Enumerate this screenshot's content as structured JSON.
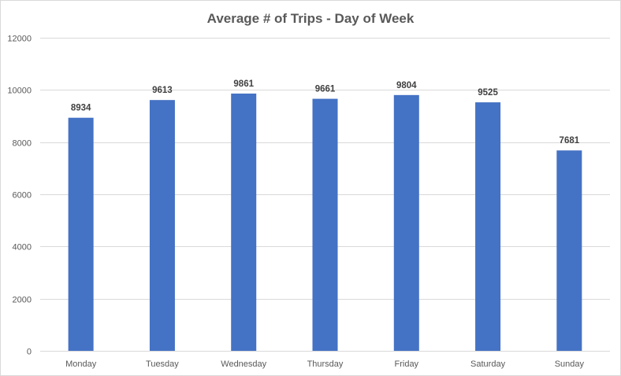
{
  "chart_data": {
    "type": "bar",
    "title": "Average # of Trips - Day of Week",
    "xlabel": "",
    "ylabel": "",
    "categories": [
      "Monday",
      "Tuesday",
      "Wednesday",
      "Thursday",
      "Friday",
      "Saturday",
      "Sunday"
    ],
    "values": [
      8934,
      9613,
      9861,
      9661,
      9804,
      9525,
      7681
    ],
    "data_labels": [
      "8934",
      "9613",
      "9861",
      "9661",
      "9804",
      "9525",
      "7681"
    ],
    "ylim": [
      0,
      12000
    ],
    "yticks": [
      0,
      2000,
      4000,
      6000,
      8000,
      10000,
      12000
    ],
    "ytick_labels": [
      "0",
      "2000",
      "4000",
      "6000",
      "8000",
      "10000",
      "12000"
    ],
    "grid": true,
    "legend": "none",
    "colors": {
      "bar": "#4472c4",
      "grid": "#d9d9d9",
      "text": "#595959",
      "data_label": "#404040"
    }
  }
}
